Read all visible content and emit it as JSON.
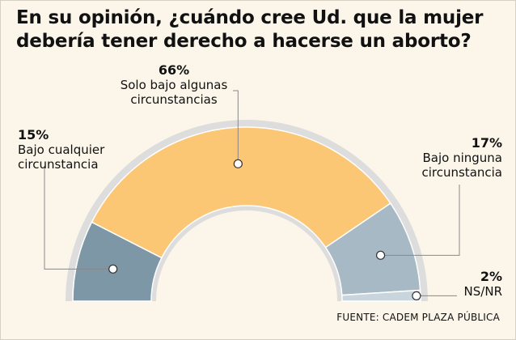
{
  "chart_data": {
    "type": "pie",
    "variant": "semicircle-donut",
    "title_lines": [
      "En su opinión, ¿cuándo cree Ud. que la mujer",
      "debería tener derecho a hacerse un aborto?"
    ],
    "slices": [
      {
        "label_lines": [
          "Bajo cualquier",
          "circunstancia"
        ],
        "value": 15,
        "pct_label": "15%",
        "color": "#7d97a6"
      },
      {
        "label_lines": [
          "Solo bajo algunas",
          "circunstancias"
        ],
        "value": 66,
        "pct_label": "66%",
        "color": "#fcc775"
      },
      {
        "label_lines": [
          "Bajo ninguna",
          "circunstancia"
        ],
        "value": 17,
        "pct_label": "17%",
        "color": "#a7b9c4"
      },
      {
        "label_lines": [
          "NS/NR"
        ],
        "value": 2,
        "pct_label": "2%",
        "color": "#c9d5dc"
      }
    ],
    "source": "FUENTE: CADEM PLAZA PÚBLICA"
  }
}
